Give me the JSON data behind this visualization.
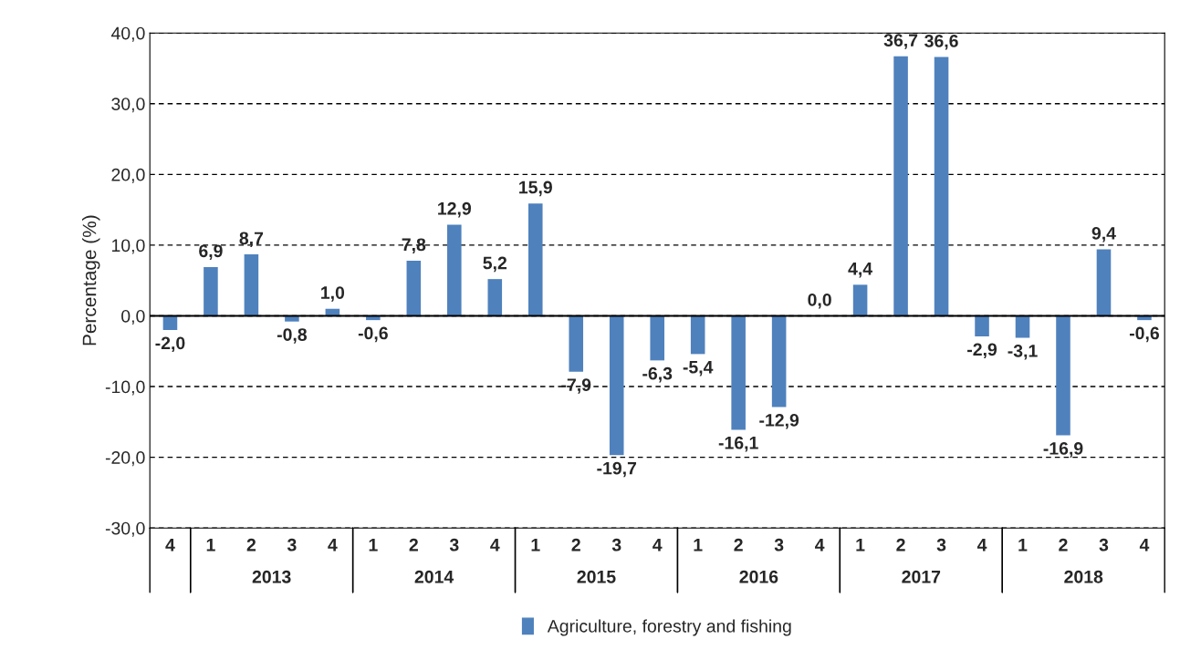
{
  "chart_data": {
    "type": "bar",
    "ylabel": "Percentage (%)",
    "categories": [
      "4",
      "1",
      "2",
      "3",
      "4",
      "1",
      "2",
      "3",
      "4",
      "1",
      "2",
      "3",
      "4",
      "1",
      "2",
      "3",
      "4",
      "1",
      "2",
      "3",
      "4",
      "1",
      "2",
      "3",
      "4"
    ],
    "series": [
      {
        "name": "Agriculture, forestry and fishing",
        "color": "#4f81bd",
        "values": [
          -2.0,
          6.9,
          8.7,
          -0.8,
          1.0,
          -0.6,
          7.8,
          12.9,
          5.2,
          15.9,
          -7.9,
          -19.7,
          -6.3,
          -5.4,
          -16.1,
          -12.9,
          0.0,
          4.4,
          36.7,
          36.6,
          -2.9,
          -3.1,
          -16.9,
          9.4,
          -0.6
        ],
        "value_labels": [
          "-2,0",
          "6,9",
          "8,7",
          "-0,8",
          "1,0",
          "-0,6",
          "7,8",
          "12,9",
          "5,2",
          "15,9",
          "-7,9",
          "-19,7",
          "-6,3",
          "-5,4",
          "-16,1",
          "-12,9",
          "0,0",
          "4,4",
          "36,7",
          "36,6",
          "-2,9",
          "-3,1",
          "-16,9",
          "9,4",
          "-0,6"
        ]
      }
    ],
    "annotations": [
      "2013",
      "2014",
      "2015",
      "2016",
      "2017",
      "2018"
    ],
    "ylim": [
      -30,
      40
    ],
    "yticks": [
      {
        "value": -30,
        "label": "-30,0"
      },
      {
        "value": -20,
        "label": "-20,0"
      },
      {
        "value": -10,
        "label": "-10,0"
      },
      {
        "value": 0,
        "label": "0,0"
      },
      {
        "value": 10,
        "label": "10,0"
      },
      {
        "value": 20,
        "label": "20,0"
      },
      {
        "value": 30,
        "label": "30,0"
      },
      {
        "value": 40,
        "label": "40,0"
      }
    ],
    "grid": "y",
    "line_style": "dashed",
    "legend": "bottom"
  }
}
